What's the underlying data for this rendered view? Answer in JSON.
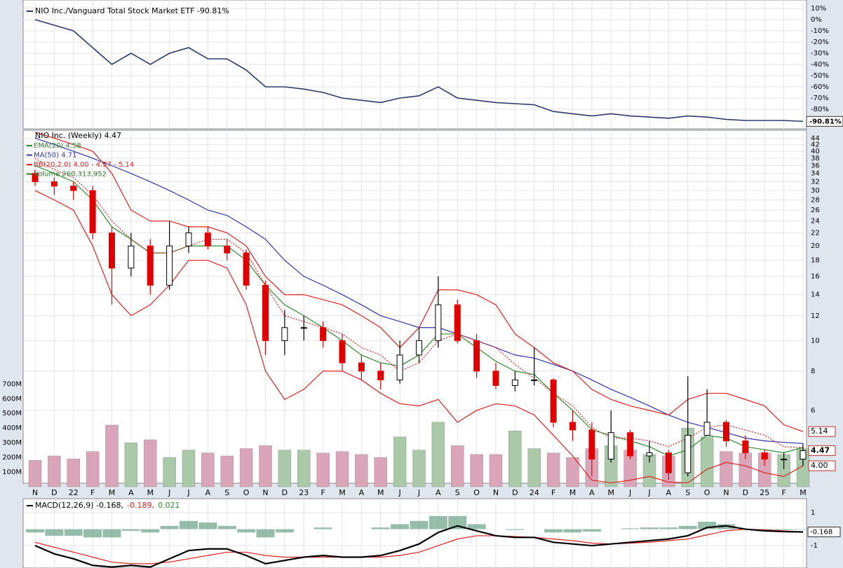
{
  "chart_data": [
    {
      "type": "line",
      "title": "NIO Inc./Vanguard Total Stock Market ETF -90.81%",
      "color": "#2b3a6b",
      "values": [
        0,
        -5,
        -10,
        -25,
        -40,
        -30,
        -40,
        -30,
        -25,
        -35,
        -35,
        -45,
        -60,
        -60,
        -62,
        -65,
        -70,
        -72,
        -74,
        -70,
        -68,
        -60,
        -70,
        -72,
        -74,
        -75,
        -76,
        -82,
        -84,
        -86,
        -84,
        -86,
        -87,
        -88,
        -86,
        -87,
        -89,
        -90,
        -90,
        -90,
        -90.81
      ],
      "ylim": [
        -97.5,
        17.5
      ],
      "yticks": [
        {
          "value": 10,
          "label": "10%"
        },
        {
          "value": 0,
          "label": "0%"
        },
        {
          "value": -10,
          "label": "-10%"
        },
        {
          "value": -20,
          "label": "-20%"
        },
        {
          "value": -30,
          "label": "-30%"
        },
        {
          "value": -40,
          "label": "-40%"
        },
        {
          "value": -50,
          "label": "-50%"
        },
        {
          "value": -60,
          "label": "-60%"
        },
        {
          "value": -70,
          "label": "-70%"
        },
        {
          "value": -80,
          "label": "-80%"
        }
      ],
      "last_label": {
        "value": -90.81,
        "label": "-90.81%"
      },
      "grid": true
    },
    {
      "type": "candlestick",
      "title": "NIO Inc. (Weekly) 4.47",
      "categories": [
        "N",
        "D",
        "22",
        "F",
        "M",
        "A",
        "M",
        "J",
        "J",
        "A",
        "S",
        "O",
        "N",
        "D",
        "23",
        "F",
        "M",
        "A",
        "M",
        "J",
        "J",
        "A",
        "S",
        "O",
        "N",
        "D",
        "24",
        "F",
        "M",
        "A",
        "M",
        "J",
        "J",
        "A",
        "S",
        "O",
        "N",
        "D",
        "25",
        "F",
        "M"
      ],
      "open": [
        34,
        32,
        31,
        30,
        22,
        17,
        20,
        15,
        20,
        22,
        20,
        19,
        15,
        10,
        11,
        11,
        10,
        8.5,
        8,
        7.5,
        9,
        10,
        13,
        10,
        8,
        7.2,
        7.5,
        7.5,
        5.5,
        5.2,
        4.2,
        5.1,
        4.3,
        4.4,
        3.8,
        5,
        5.5,
        4.8,
        4.4,
        4.2,
        4.2
      ],
      "high": [
        35,
        33,
        32,
        31,
        23,
        22,
        21,
        24,
        23,
        23,
        21,
        19.5,
        15.5,
        12.5,
        12,
        11.5,
        10.5,
        9,
        8.5,
        10,
        11,
        16,
        13.5,
        10.5,
        8.5,
        8,
        9.5,
        7.6,
        6,
        5.5,
        6,
        5.2,
        4.8,
        4.5,
        7.7,
        7,
        5.6,
        5,
        4.5,
        4.4,
        4.7
      ],
      "low": [
        31,
        29,
        28,
        21,
        13,
        16,
        14,
        14.5,
        19,
        19.5,
        18,
        14.5,
        9,
        9,
        10,
        9.5,
        8,
        7.5,
        7,
        7.3,
        8.5,
        9.5,
        9.8,
        7.6,
        7,
        6.9,
        7.2,
        5.3,
        4.8,
        3.7,
        4.1,
        4.2,
        4.1,
        3.6,
        3.7,
        5.2,
        4.6,
        4.2,
        4,
        3.9,
        4
      ],
      "close": [
        32,
        31,
        30,
        22,
        17,
        20,
        15,
        20,
        22,
        20,
        19,
        15,
        10,
        11,
        11,
        10,
        8.5,
        8,
        7.5,
        9,
        10,
        13,
        10,
        8,
        7.2,
        7.5,
        7.5,
        5.5,
        5.2,
        4.2,
        5.1,
        4.3,
        4.4,
        3.8,
        5,
        5.5,
        4.8,
        4.4,
        4.2,
        4.2,
        4.47
      ],
      "up_color": "#ffffff",
      "down_color": "#e00000",
      "log_scale": true,
      "ylim": [
        3.52,
        46.4
      ],
      "yticks": [
        6,
        8,
        10,
        12,
        14,
        16,
        18,
        20,
        22,
        24,
        26,
        28,
        30,
        32,
        34,
        36,
        38,
        40,
        42,
        44
      ],
      "grid": true,
      "overlays": [
        {
          "name": "EMA(20) 4.58",
          "color": "#2e8b2e",
          "values": [
            36,
            34,
            32,
            28,
            23,
            21,
            19,
            19,
            20,
            20,
            20,
            18,
            15,
            13,
            12,
            11,
            10,
            9,
            8.5,
            8.3,
            9,
            10.5,
            10.5,
            9.5,
            8.6,
            8,
            7.8,
            6.8,
            6,
            5.2,
            5,
            4.8,
            4.6,
            4.3,
            4.5,
            5,
            4.9,
            4.6,
            4.5,
            4.4,
            4.58
          ]
        },
        {
          "name": "MA(50) 4.71",
          "color": "#3333aa",
          "values": [
            44,
            42,
            40,
            38,
            36,
            34,
            32,
            30,
            28,
            26,
            25,
            23,
            21,
            18,
            16,
            15,
            14,
            13,
            12,
            11.5,
            11,
            11,
            10.5,
            10,
            9.5,
            9,
            8.8,
            8.4,
            8,
            7.5,
            7,
            6.6,
            6.2,
            5.8,
            5.5,
            5.3,
            5.1,
            4.9,
            4.8,
            4.75,
            4.71
          ]
        },
        {
          "name": "BB(20,2.0) 4.00 - 4.57 - 5.14",
          "color": "#e02020",
          "upper": [
            46,
            44,
            42,
            40,
            34,
            26,
            24,
            24,
            23,
            23,
            22,
            20,
            16,
            14,
            14,
            13.5,
            13,
            12,
            11,
            9.5,
            11,
            14.5,
            14.5,
            14,
            13,
            10.5,
            9.5,
            8.5,
            8,
            7,
            6.5,
            6.2,
            6,
            5.8,
            6.5,
            6.8,
            6.8,
            6.5,
            6.2,
            5.4,
            5.14
          ],
          "middle": [
            38,
            35,
            33,
            29,
            24,
            21,
            19,
            19,
            20,
            21,
            21,
            19,
            15,
            12,
            11.5,
            11,
            10.5,
            9.5,
            9,
            8,
            8.5,
            10,
            10.5,
            10,
            9.5,
            8.4,
            7.6,
            6.8,
            6.2,
            5.3,
            4.9,
            4.9,
            4.8,
            4.6,
            4.9,
            5.3,
            5.4,
            5.2,
            5,
            4.6,
            4.57
          ],
          "lower": [
            30,
            28,
            26,
            20,
            14,
            12,
            13,
            15,
            18,
            18,
            17,
            13,
            8,
            6.5,
            7,
            8,
            8,
            7.5,
            6.8,
            6.3,
            6.2,
            6.5,
            5.5,
            6,
            6.3,
            6.2,
            5.8,
            5,
            4.3,
            3.6,
            3.53,
            3.6,
            3.7,
            3.55,
            3.53,
            3.9,
            4.1,
            4,
            3.8,
            3.7,
            4.0
          ]
        }
      ],
      "volume": {
        "name": "Volume 260,313,952",
        "up_color": "#a9c9a9",
        "down_color": "#dba5b9",
        "values": [
          180,
          210,
          190,
          240,
          420,
          300,
          320,
          200,
          250,
          230,
          210,
          260,
          280,
          250,
          250,
          230,
          240,
          220,
          200,
          340,
          250,
          440,
          280,
          220,
          220,
          380,
          260,
          230,
          200,
          260,
          280,
          250,
          220,
          210,
          400,
          340,
          240,
          230,
          230,
          220,
          260
        ],
        "ylim": [
          0,
          2424
        ],
        "yticks": [
          {
            "value": 700,
            "label": "700M"
          },
          {
            "value": 600,
            "label": "600M"
          },
          {
            "value": 500,
            "label": "500M"
          },
          {
            "value": 400,
            "label": "400M"
          },
          {
            "value": 300,
            "label": "300M"
          },
          {
            "value": 200,
            "label": "200M"
          },
          {
            "value": 100,
            "label": "100M"
          }
        ]
      },
      "price_labels": [
        {
          "value": 5.14,
          "label": "5.14"
        },
        {
          "value": 4.47,
          "label": "4.47"
        },
        {
          "value": 4.0,
          "label": "4.00"
        }
      ]
    },
    {
      "type": "macd",
      "title_parts": [
        {
          "text": "MACD(12,26,9) -0.168,",
          "color": "#000000"
        },
        {
          "text": "-0.189,",
          "color": "#e02020"
        },
        {
          "text": "0.021",
          "color": "#2e8b2e"
        }
      ],
      "macd": [
        -1,
        -1.5,
        -1.8,
        -2.2,
        -2.3,
        -2.2,
        -2.3,
        -1.8,
        -1.3,
        -1.2,
        -1.2,
        -1.6,
        -2.1,
        -1.9,
        -1.7,
        -1.6,
        -1.7,
        -1.7,
        -1.6,
        -1.3,
        -0.9,
        -0.2,
        0.2,
        -0.1,
        -0.4,
        -0.5,
        -0.5,
        -0.8,
        -0.9,
        -1.0,
        -0.9,
        -0.8,
        -0.7,
        -0.6,
        -0.4,
        0.1,
        0.2,
        0,
        -0.1,
        -0.15,
        -0.168
      ],
      "signal": [
        -0.8,
        -1.1,
        -1.4,
        -1.7,
        -2.0,
        -2.1,
        -2.1,
        -2.0,
        -1.8,
        -1.6,
        -1.4,
        -1.4,
        -1.6,
        -1.7,
        -1.7,
        -1.7,
        -1.7,
        -1.7,
        -1.7,
        -1.6,
        -1.4,
        -1.0,
        -0.6,
        -0.4,
        -0.4,
        -0.45,
        -0.5,
        -0.6,
        -0.7,
        -0.85,
        -0.9,
        -0.85,
        -0.8,
        -0.7,
        -0.6,
        -0.35,
        -0.1,
        0,
        -0.05,
        -0.1,
        -0.189
      ],
      "histogram": [
        -0.2,
        -0.4,
        -0.4,
        -0.5,
        -0.5,
        -0.1,
        -0.2,
        0.2,
        0.5,
        0.4,
        0.2,
        -0.2,
        -0.5,
        -0.2,
        0,
        0.1,
        0,
        0,
        0.1,
        0.3,
        0.5,
        0.8,
        0.8,
        0.3,
        0,
        -0.05,
        0,
        -0.2,
        -0.2,
        -0.15,
        0,
        0.05,
        0.1,
        0.1,
        0.2,
        0.45,
        0.3,
        0,
        -0.05,
        -0.05,
        0.021
      ],
      "macd_color": "#000000",
      "signal_color": "#e02020",
      "hist_color": "#6a9f86",
      "ylim": [
        -2.36,
        1.81
      ],
      "yticks": [
        1,
        -1
      ],
      "last_label": {
        "value": -0.168,
        "label": "-0.168"
      },
      "grid": true
    }
  ]
}
